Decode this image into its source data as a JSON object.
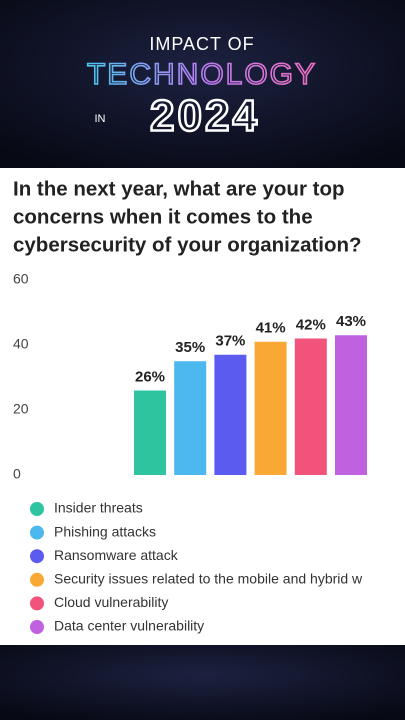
{
  "header": {
    "line1": "IMPACT OF",
    "line2": "TECHNOLOGY",
    "prefix": "IN",
    "year": "2024"
  },
  "chart_data": {
    "type": "bar",
    "title": [
      "In the next year, what are your top",
      "concerns when it comes to the",
      "cybersecurity of your organization?"
    ],
    "categories": [
      "Insider threats",
      "Phishing attacks",
      "Ransomware attack",
      "Security issues related to the mobile and hybrid w",
      "Cloud vulnerability",
      "Data center vulnerability"
    ],
    "values": [
      26,
      35,
      37,
      41,
      42,
      43
    ],
    "value_labels": [
      "26%",
      "35%",
      "37%",
      "41%",
      "42%",
      "43%"
    ],
    "colors": [
      "#2ec4a0",
      "#4cb8ee",
      "#5b5bef",
      "#f9a835",
      "#f2537a",
      "#c062e0"
    ],
    "ylim": [
      0,
      60
    ],
    "yticks": [
      0,
      20,
      40,
      60
    ],
    "grid": false
  }
}
